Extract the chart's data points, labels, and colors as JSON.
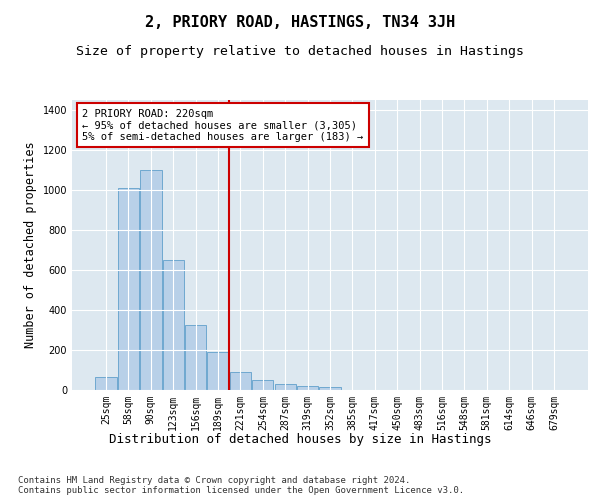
{
  "title": "2, PRIORY ROAD, HASTINGS, TN34 3JH",
  "subtitle": "Size of property relative to detached houses in Hastings",
  "xlabel": "Distribution of detached houses by size in Hastings",
  "ylabel": "Number of detached properties",
  "categories": [
    "25sqm",
    "58sqm",
    "90sqm",
    "123sqm",
    "156sqm",
    "189sqm",
    "221sqm",
    "254sqm",
    "287sqm",
    "319sqm",
    "352sqm",
    "385sqm",
    "417sqm",
    "450sqm",
    "483sqm",
    "516sqm",
    "548sqm",
    "581sqm",
    "614sqm",
    "646sqm",
    "679sqm"
  ],
  "values": [
    65,
    1010,
    1100,
    650,
    325,
    190,
    90,
    48,
    28,
    22,
    15,
    0,
    0,
    0,
    0,
    0,
    0,
    0,
    0,
    0,
    0
  ],
  "bar_color": "#b8d0e8",
  "bar_edge_color": "#6fa8d0",
  "background_color": "#dde8f0",
  "grid_color": "#ffffff",
  "vline_color": "#cc0000",
  "annotation_text": "2 PRIORY ROAD: 220sqm\n← 95% of detached houses are smaller (3,305)\n5% of semi-detached houses are larger (183) →",
  "annotation_box_color": "#cc0000",
  "ylim": [
    0,
    1450
  ],
  "yticks": [
    0,
    200,
    400,
    600,
    800,
    1000,
    1200,
    1400
  ],
  "footer": "Contains HM Land Registry data © Crown copyright and database right 2024.\nContains public sector information licensed under the Open Government Licence v3.0.",
  "title_fontsize": 11,
  "subtitle_fontsize": 9.5,
  "ylabel_fontsize": 8.5,
  "xlabel_fontsize": 9,
  "tick_fontsize": 7,
  "footer_fontsize": 6.5
}
